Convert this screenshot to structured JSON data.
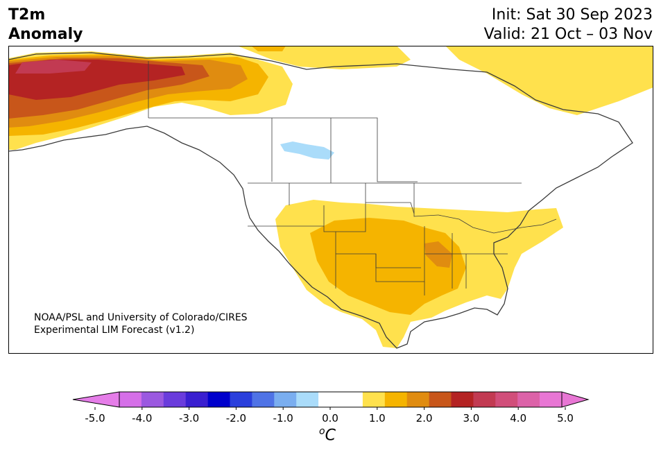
{
  "header": {
    "title_left": "T2m\nAnomaly",
    "title_right": "Init: Sat 30 Sep 2023\nValid: 21 Oct – 03 Nov"
  },
  "credit": "NOAA/PSL and University of Colorado/CIRES\nExperimental LIM Forecast (v1.2)",
  "colorbar": {
    "ticks": [
      "-5.0",
      "-4.0",
      "-3.0",
      "-2.0",
      "-1.0",
      "0.0",
      "1.0",
      "2.0",
      "3.0",
      "4.0",
      "5.0"
    ],
    "colors": [
      "#d56fe8",
      "#9b59e0",
      "#6a3cdc",
      "#3a1fd0",
      "#0000cc",
      "#2a3fdc",
      "#4f73e6",
      "#7aaef0",
      "#aadcfa",
      "#ffffff",
      "#ffffff",
      "#ffe14d",
      "#f5b400",
      "#e08c10",
      "#c8561a",
      "#b42323",
      "#c23a52",
      "#d14e7a",
      "#dc62a8",
      "#e876d4"
    ],
    "under_color": "#e57de8",
    "over_color": "#e876d4",
    "units_label": "C",
    "units_prefix": "o"
  },
  "legend_colors": {
    "anom_0_5_1_0": "#ffe14d",
    "anom_1_0_1_5": "#f5b400",
    "anom_1_5_2_0": "#e08c10",
    "anom_2_0_2_5": "#c8561a",
    "anom_2_5_3_0": "#b42323",
    "anom_3_0_3_5": "#c23a52",
    "anom_neg_1_0_0_5": "#aadcfa"
  }
}
